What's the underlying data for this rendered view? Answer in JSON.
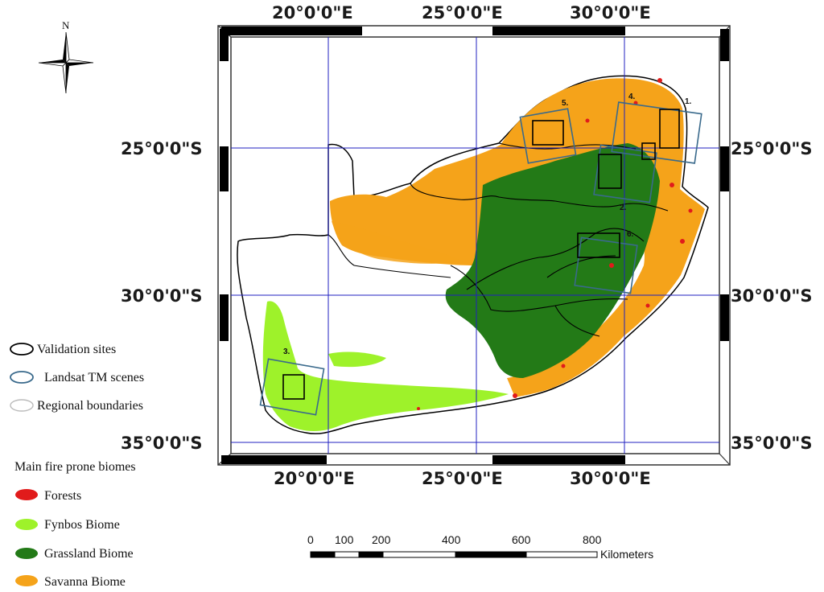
{
  "north_label": "N",
  "coordinates": {
    "lon": [
      "20°0'0\"E",
      "25°0'0\"E",
      "30°0'0\"E"
    ],
    "lat": [
      "25°0'0\"S",
      "30°0'0\"S",
      "35°0'0\"S"
    ]
  },
  "site_labels": [
    "1.",
    "2.",
    "3.",
    "4.",
    "5.",
    "6."
  ],
  "legend": {
    "outline_items": [
      {
        "label": "Validation sites",
        "color": "#000000"
      },
      {
        "label": "Landsat TM scenes",
        "color": "#3a6a8c"
      },
      {
        "label": "Regional boundaries",
        "color": "#bbbbbb"
      }
    ],
    "biome_title": "Main fire prone biomes",
    "biome_items": [
      {
        "label": "Forests",
        "color": "#e11b1b"
      },
      {
        "label": "Fynbos Biome",
        "color": "#9ef22a"
      },
      {
        "label": "Grassland Biome",
        "color": "#237a17"
      },
      {
        "label": "Savanna Biome",
        "color": "#f5a31a"
      }
    ]
  },
  "scale_bar": {
    "ticks": [
      "0",
      "100",
      "200",
      "400",
      "600",
      "800"
    ],
    "unit": "Kilometers"
  },
  "colors": {
    "graticule": "#2020c0",
    "landsat": "#3a6a8c",
    "validation": "#000000",
    "savanna": "#f5a31a",
    "grassland": "#237a17",
    "fynbos": "#9ef22a",
    "forest": "#e11b1b"
  }
}
